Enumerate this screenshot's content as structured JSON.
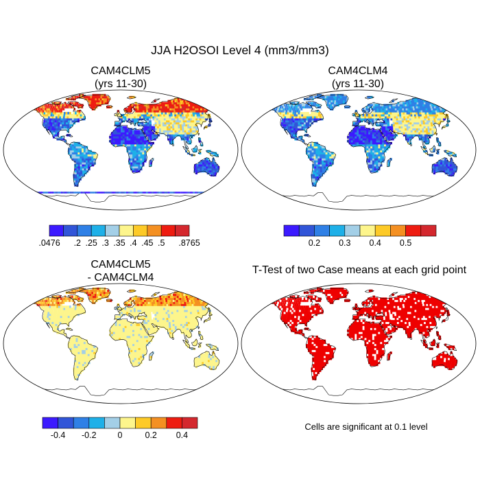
{
  "chart_data": {
    "type": "map",
    "title": "JJA H2OSOI Level 4 (mm3/mm3)",
    "panels": [
      {
        "id": "cam4clm5",
        "title_lines": [
          "CAM4CLM5",
          "(yrs 11-30)"
        ],
        "variable": "H2OSOI level 4",
        "period": "yrs 11-30",
        "season": "JJA",
        "units": "mm3/mm3",
        "range": [
          0.0476,
          0.8765
        ],
        "colorbar": {
          "colors": [
            "#3c1aff",
            "#3155d8",
            "#2f80e6",
            "#1eb0e8",
            "#a3cfe7",
            "#fdf58c",
            "#fdca27",
            "#f49022",
            "#ee1c11",
            "#d4282e"
          ],
          "tick_labels": [
            ".0476",
            ".2",
            ".25",
            ".3",
            ".35",
            ".4",
            ".45",
            ".5",
            ".8765"
          ]
        }
      },
      {
        "id": "cam4clm4",
        "title_lines": [
          "CAM4CLM4",
          "(yrs 11-30)"
        ],
        "variable": "H2OSOI level 4",
        "period": "yrs 11-30",
        "season": "JJA",
        "units": "mm3/mm3",
        "colorbar": {
          "colors": [
            "#3c1aff",
            "#3155d8",
            "#2f80e6",
            "#1eb0e8",
            "#a3cfe7",
            "#fdf58c",
            "#fdca27",
            "#f49022",
            "#ee1c11",
            "#d4282e"
          ],
          "tick_labels": [
            "0.2",
            "0.3",
            "0.4",
            "0.5"
          ]
        }
      },
      {
        "id": "difference",
        "title_lines": [
          "CAM4CLM5",
          "- CAM4CLM4"
        ],
        "description": "difference of case means",
        "units": "mm3/mm3",
        "colorbar": {
          "colors": [
            "#3c1aff",
            "#3155d8",
            "#2f80e6",
            "#1eb0e8",
            "#a3cfe7",
            "#fdf58c",
            "#fdca27",
            "#f49022",
            "#ee1c11",
            "#d4282e"
          ],
          "tick_labels": [
            "-0.4",
            "-0.2",
            "0",
            "0.2",
            "0.4"
          ]
        }
      },
      {
        "id": "ttest",
        "title_lines": [
          "T-Test of two Case means at each grid point"
        ],
        "description": "grid cells significant at 0.1 level shown in red",
        "significance_level": 0.1,
        "note": "Cells are significant at 0.1 level",
        "significant_color": "#ee0000"
      }
    ]
  },
  "colors": {
    "background": "#ffffff",
    "ocean": "#ffffff",
    "coast": "#000000",
    "significant": "#ee0000"
  }
}
